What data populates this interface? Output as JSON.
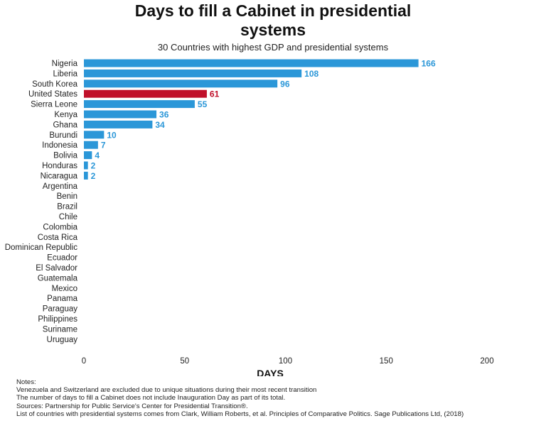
{
  "chart_data": {
    "type": "bar",
    "orientation": "horizontal",
    "title": "Days to fill a Cabinet in presidential systems",
    "subtitle": "30 Countries with highest GDP and presidential systems",
    "xlabel": "DAYS",
    "ylabel": "",
    "xlim": [
      0,
      200
    ],
    "xticks": [
      0,
      50,
      100,
      150,
      200
    ],
    "grid": false,
    "legend": "none",
    "categories": [
      "Nigeria",
      "Liberia",
      "South Korea",
      "United States",
      "Sierra Leone",
      "Kenya ",
      "Ghana",
      "Burundi",
      "Indonesia",
      "Bolivia",
      "Honduras",
      "Nicaragua",
      "Argentina",
      "Benin",
      "Brazil",
      "Chile",
      "Colombia",
      "Costa Rica",
      "Dominican Republic",
      "Ecuador",
      "El Salvador",
      "Guatemala",
      "Mexico",
      "Panama",
      "Paraguay",
      "Philippines",
      "Suriname",
      "Uruguay"
    ],
    "values": [
      166,
      108,
      96,
      61,
      55,
      36,
      34,
      10,
      7,
      4,
      2,
      2,
      null,
      null,
      null,
      null,
      null,
      null,
      null,
      null,
      null,
      null,
      null,
      null,
      null,
      null,
      null,
      null
    ],
    "highlight": "United States",
    "colors": {
      "bar": "#2b97d8",
      "highlight": "#c0102a",
      "label": "#2b97d8",
      "highlight_label": "#c0102a"
    }
  },
  "notes": [
    "Notes:",
    "Venezuela and Switzerland are excluded due to unique situations during their most recent transition",
    "The number of days to fill a Cabinet does not include Inauguration Day as part of its total.",
    "Sources: Partnership for Public Service's Center for Presidential Transition®.",
    "List of countries with presidential systems comes from Clark, William Roberts, et al. Principles of Comparative Politics. Sage Publications Ltd, (2018)"
  ]
}
